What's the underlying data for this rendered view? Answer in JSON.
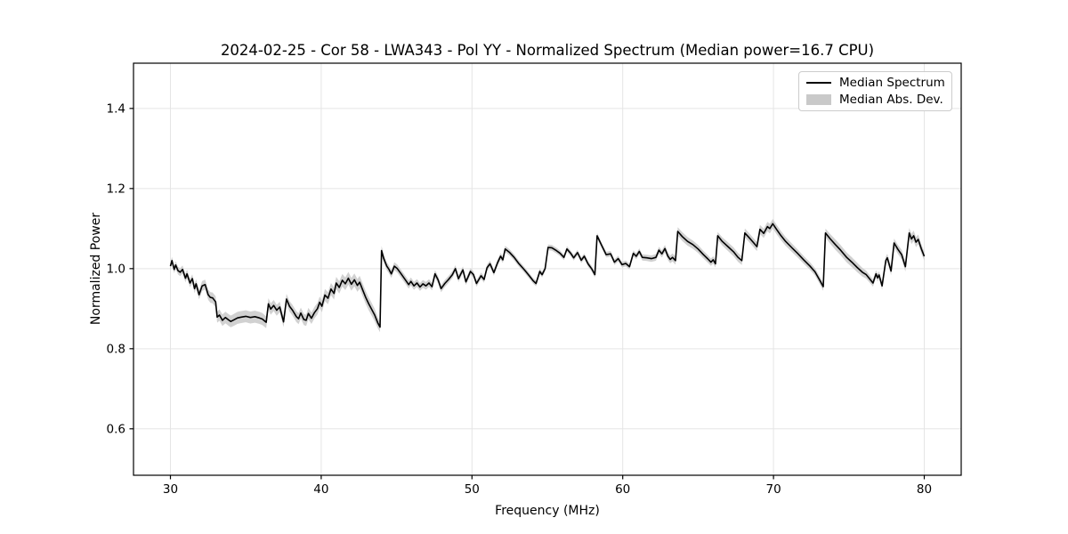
{
  "legend": {
    "entries": [
      {
        "label": "Median Spectrum",
        "type": "line",
        "color": "#000000"
      },
      {
        "label": "Median Abs. Dev.",
        "type": "patch",
        "color": "#c9c9c9"
      }
    ]
  },
  "chart_data": {
    "type": "line",
    "title": "2024-02-25 - Cor 58 - LWA343 - Pol YY - Normalized Spectrum (Median power=16.7 CPU)",
    "xlabel": "Frequency (MHz)",
    "ylabel": "Normalized Power",
    "xlim": [
      27.55,
      82.45
    ],
    "ylim": [
      0.484,
      1.513
    ],
    "xticks": [
      30,
      40,
      50,
      60,
      70,
      80
    ],
    "yticks": [
      "0.6",
      "0.8",
      "1.0",
      "1.2",
      "1.4"
    ],
    "grid": true,
    "legend_position": "upper right",
    "colors": {
      "line": "#000000",
      "band": "#c9c9c9",
      "grid": "#e5e5e5",
      "spine": "#000000"
    },
    "series": [
      {
        "name": "Median Spectrum",
        "color": "#000000",
        "points": [
          [
            30.0,
            1.006
          ],
          [
            30.1,
            1.02
          ],
          [
            30.25,
            0.998
          ],
          [
            30.35,
            1.009
          ],
          [
            30.5,
            0.995
          ],
          [
            30.65,
            0.991
          ],
          [
            30.8,
            0.998
          ],
          [
            31.0,
            0.976
          ],
          [
            31.1,
            0.987
          ],
          [
            31.3,
            0.964
          ],
          [
            31.45,
            0.975
          ],
          [
            31.6,
            0.95
          ],
          [
            31.7,
            0.962
          ],
          [
            31.9,
            0.935
          ],
          [
            32.1,
            0.957
          ],
          [
            32.3,
            0.96
          ],
          [
            32.5,
            0.935
          ],
          [
            32.65,
            0.928
          ],
          [
            32.8,
            0.927
          ],
          [
            33.0,
            0.917
          ],
          [
            33.1,
            0.879
          ],
          [
            33.25,
            0.884
          ],
          [
            33.45,
            0.871
          ],
          [
            33.65,
            0.878
          ],
          [
            33.85,
            0.872
          ],
          [
            34.0,
            0.868
          ],
          [
            34.2,
            0.872
          ],
          [
            34.45,
            0.877
          ],
          [
            34.7,
            0.879
          ],
          [
            35.0,
            0.881
          ],
          [
            35.3,
            0.878
          ],
          [
            35.6,
            0.88
          ],
          [
            35.9,
            0.877
          ],
          [
            36.1,
            0.874
          ],
          [
            36.35,
            0.866
          ],
          [
            36.5,
            0.912
          ],
          [
            36.65,
            0.899
          ],
          [
            36.85,
            0.908
          ],
          [
            37.05,
            0.896
          ],
          [
            37.25,
            0.904
          ],
          [
            37.5,
            0.867
          ],
          [
            37.7,
            0.924
          ],
          [
            37.9,
            0.906
          ],
          [
            38.1,
            0.896
          ],
          [
            38.35,
            0.88
          ],
          [
            38.5,
            0.875
          ],
          [
            38.65,
            0.889
          ],
          [
            38.85,
            0.873
          ],
          [
            39.0,
            0.871
          ],
          [
            39.15,
            0.888
          ],
          [
            39.35,
            0.876
          ],
          [
            39.55,
            0.89
          ],
          [
            39.75,
            0.9
          ],
          [
            39.9,
            0.916
          ],
          [
            40.05,
            0.906
          ],
          [
            40.25,
            0.934
          ],
          [
            40.45,
            0.926
          ],
          [
            40.65,
            0.949
          ],
          [
            40.85,
            0.938
          ],
          [
            41.0,
            0.964
          ],
          [
            41.2,
            0.953
          ],
          [
            41.4,
            0.971
          ],
          [
            41.6,
            0.962
          ],
          [
            41.8,
            0.976
          ],
          [
            42.0,
            0.961
          ],
          [
            42.2,
            0.972
          ],
          [
            42.4,
            0.958
          ],
          [
            42.55,
            0.966
          ],
          [
            42.75,
            0.947
          ],
          [
            42.95,
            0.928
          ],
          [
            43.15,
            0.912
          ],
          [
            43.35,
            0.898
          ],
          [
            43.55,
            0.884
          ],
          [
            43.75,
            0.865
          ],
          [
            43.9,
            0.854
          ],
          [
            44.0,
            1.045
          ],
          [
            44.15,
            1.025
          ],
          [
            44.35,
            1.006
          ],
          [
            44.5,
            0.998
          ],
          [
            44.65,
            0.987
          ],
          [
            44.85,
            1.006
          ],
          [
            45.05,
            1.0
          ],
          [
            45.3,
            0.987
          ],
          [
            45.6,
            0.971
          ],
          [
            45.8,
            0.96
          ],
          [
            45.95,
            0.968
          ],
          [
            46.15,
            0.957
          ],
          [
            46.35,
            0.964
          ],
          [
            46.55,
            0.954
          ],
          [
            46.75,
            0.962
          ],
          [
            46.95,
            0.957
          ],
          [
            47.15,
            0.964
          ],
          [
            47.35,
            0.955
          ],
          [
            47.55,
            0.987
          ],
          [
            47.75,
            0.972
          ],
          [
            47.95,
            0.95
          ],
          [
            48.2,
            0.963
          ],
          [
            48.45,
            0.973
          ],
          [
            48.7,
            0.985
          ],
          [
            48.9,
            1.0
          ],
          [
            49.1,
            0.975
          ],
          [
            49.4,
            0.997
          ],
          [
            49.6,
            0.967
          ],
          [
            49.9,
            0.993
          ],
          [
            50.1,
            0.985
          ],
          [
            50.3,
            0.963
          ],
          [
            50.6,
            0.982
          ],
          [
            50.8,
            0.973
          ],
          [
            51.0,
            1.002
          ],
          [
            51.2,
            1.012
          ],
          [
            51.45,
            0.99
          ],
          [
            51.7,
            1.015
          ],
          [
            51.9,
            1.031
          ],
          [
            52.05,
            1.022
          ],
          [
            52.2,
            1.049
          ],
          [
            52.5,
            1.04
          ],
          [
            52.8,
            1.028
          ],
          [
            53.1,
            1.013
          ],
          [
            53.5,
            0.996
          ],
          [
            53.8,
            0.982
          ],
          [
            54.05,
            0.97
          ],
          [
            54.25,
            0.963
          ],
          [
            54.5,
            0.993
          ],
          [
            54.65,
            0.985
          ],
          [
            54.85,
            1.0
          ],
          [
            55.05,
            1.053
          ],
          [
            55.3,
            1.052
          ],
          [
            55.6,
            1.045
          ],
          [
            55.85,
            1.038
          ],
          [
            56.1,
            1.028
          ],
          [
            56.3,
            1.049
          ],
          [
            56.55,
            1.038
          ],
          [
            56.75,
            1.027
          ],
          [
            57.0,
            1.04
          ],
          [
            57.25,
            1.021
          ],
          [
            57.45,
            1.031
          ],
          [
            57.7,
            1.012
          ],
          [
            57.95,
            0.999
          ],
          [
            58.15,
            0.985
          ],
          [
            58.3,
            1.082
          ],
          [
            58.6,
            1.058
          ],
          [
            58.9,
            1.035
          ],
          [
            59.2,
            1.037
          ],
          [
            59.45,
            1.016
          ],
          [
            59.7,
            1.025
          ],
          [
            59.95,
            1.01
          ],
          [
            60.2,
            1.013
          ],
          [
            60.45,
            1.005
          ],
          [
            60.7,
            1.038
          ],
          [
            60.9,
            1.031
          ],
          [
            61.1,
            1.043
          ],
          [
            61.3,
            1.028
          ],
          [
            61.6,
            1.027
          ],
          [
            61.9,
            1.025
          ],
          [
            62.2,
            1.028
          ],
          [
            62.4,
            1.046
          ],
          [
            62.6,
            1.037
          ],
          [
            62.8,
            1.05
          ],
          [
            63.0,
            1.031
          ],
          [
            63.15,
            1.023
          ],
          [
            63.3,
            1.028
          ],
          [
            63.5,
            1.02
          ],
          [
            63.65,
            1.093
          ],
          [
            63.95,
            1.08
          ],
          [
            64.3,
            1.068
          ],
          [
            64.65,
            1.06
          ],
          [
            65.0,
            1.049
          ],
          [
            65.35,
            1.035
          ],
          [
            65.65,
            1.024
          ],
          [
            65.85,
            1.016
          ],
          [
            66.0,
            1.022
          ],
          [
            66.15,
            1.012
          ],
          [
            66.3,
            1.082
          ],
          [
            66.6,
            1.068
          ],
          [
            66.95,
            1.056
          ],
          [
            67.35,
            1.042
          ],
          [
            67.65,
            1.028
          ],
          [
            67.9,
            1.02
          ],
          [
            68.1,
            1.089
          ],
          [
            68.35,
            1.079
          ],
          [
            68.65,
            1.066
          ],
          [
            68.9,
            1.055
          ],
          [
            69.1,
            1.098
          ],
          [
            69.35,
            1.088
          ],
          [
            69.6,
            1.105
          ],
          [
            69.75,
            1.1
          ],
          [
            69.95,
            1.112
          ],
          [
            70.2,
            1.098
          ],
          [
            70.5,
            1.082
          ],
          [
            70.8,
            1.068
          ],
          [
            71.2,
            1.053
          ],
          [
            71.6,
            1.038
          ],
          [
            72.0,
            1.022
          ],
          [
            72.4,
            1.007
          ],
          [
            72.75,
            0.992
          ],
          [
            73.05,
            0.972
          ],
          [
            73.3,
            0.955
          ],
          [
            73.45,
            1.089
          ],
          [
            73.75,
            1.075
          ],
          [
            74.1,
            1.06
          ],
          [
            74.45,
            1.046
          ],
          [
            74.85,
            1.028
          ],
          [
            75.2,
            1.016
          ],
          [
            75.55,
            1.003
          ],
          [
            75.9,
            0.991
          ],
          [
            76.15,
            0.985
          ],
          [
            76.45,
            0.971
          ],
          [
            76.6,
            0.964
          ],
          [
            76.8,
            0.987
          ],
          [
            76.9,
            0.977
          ],
          [
            77.0,
            0.984
          ],
          [
            77.2,
            0.957
          ],
          [
            77.45,
            1.02
          ],
          [
            77.55,
            1.027
          ],
          [
            77.8,
            0.994
          ],
          [
            78.0,
            1.064
          ],
          [
            78.25,
            1.048
          ],
          [
            78.5,
            1.035
          ],
          [
            78.75,
            1.005
          ],
          [
            79.0,
            1.089
          ],
          [
            79.15,
            1.074
          ],
          [
            79.3,
            1.082
          ],
          [
            79.45,
            1.066
          ],
          [
            79.6,
            1.073
          ],
          [
            79.8,
            1.05
          ],
          [
            80.0,
            1.031
          ]
        ]
      },
      {
        "name": "Median Abs. Dev.",
        "color": "#c9c9c9",
        "halfwidth_points": [
          [
            30,
            0.009
          ],
          [
            31.5,
            0.011
          ],
          [
            33,
            0.014
          ],
          [
            34.5,
            0.015
          ],
          [
            36,
            0.015
          ],
          [
            37.5,
            0.013
          ],
          [
            39,
            0.014
          ],
          [
            40.5,
            0.015
          ],
          [
            42,
            0.016
          ],
          [
            43.5,
            0.016
          ],
          [
            44.2,
            0.01
          ],
          [
            46,
            0.01
          ],
          [
            48,
            0.009
          ],
          [
            50,
            0.008
          ],
          [
            52,
            0.008
          ],
          [
            54,
            0.007
          ],
          [
            56,
            0.007
          ],
          [
            58,
            0.007
          ],
          [
            60,
            0.007
          ],
          [
            62,
            0.008
          ],
          [
            64,
            0.011
          ],
          [
            66,
            0.009
          ],
          [
            67,
            0.011
          ],
          [
            68.5,
            0.011
          ],
          [
            70,
            0.012
          ],
          [
            71.5,
            0.01
          ],
          [
            73,
            0.009
          ],
          [
            74,
            0.013
          ],
          [
            75.5,
            0.012
          ],
          [
            76.5,
            0.009
          ],
          [
            77.5,
            0.01
          ],
          [
            78.5,
            0.012
          ],
          [
            79.3,
            0.013
          ],
          [
            80,
            0.011
          ]
        ]
      }
    ]
  }
}
